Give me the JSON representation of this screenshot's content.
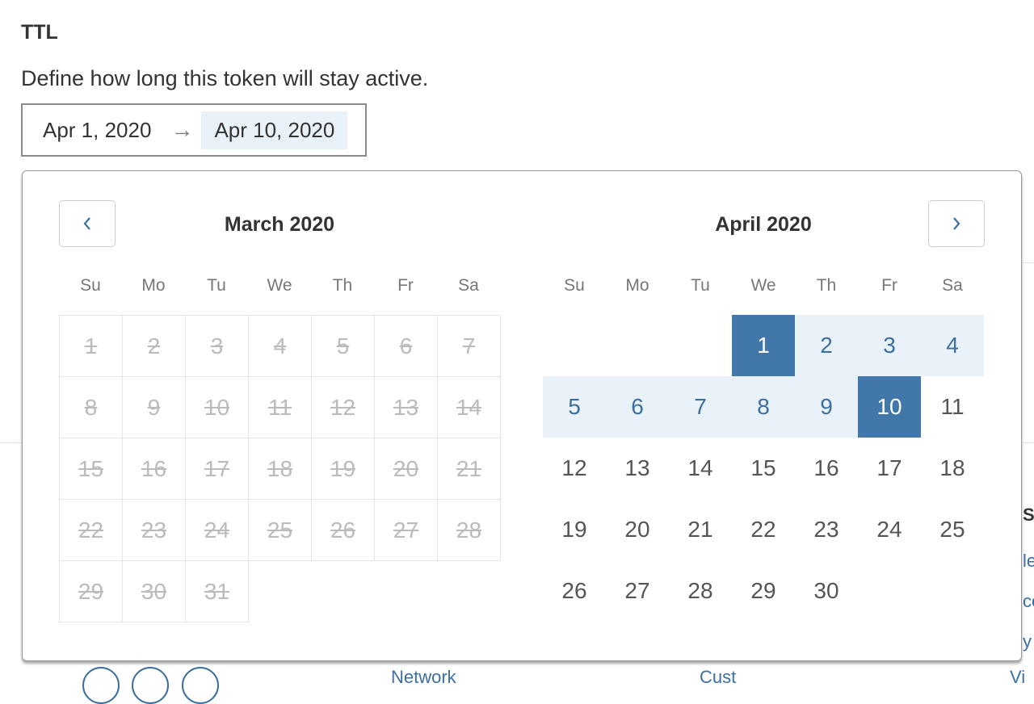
{
  "ttl": {
    "title": "TTL",
    "description": "Define how long this token will stay active.",
    "start_label": "Apr 1, 2020",
    "arrow": "→",
    "end_label": "Apr 10, 2020"
  },
  "calendar": {
    "prev_icon": "chevron-left-icon",
    "next_icon": "chevron-right-icon",
    "weekdays": [
      "Su",
      "Mo",
      "Tu",
      "We",
      "Th",
      "Fr",
      "Sa"
    ],
    "months": [
      {
        "title": "March 2020",
        "first_weekday": 0,
        "days": 31,
        "disabled": true
      },
      {
        "title": "April 2020",
        "first_weekday": 3,
        "days": 30,
        "disabled": false
      }
    ],
    "range": {
      "start": 1,
      "end": 10,
      "month_index": 1
    },
    "colors": {
      "selected": "#4277a9",
      "in_range": "#eaf2f9",
      "accent": "#3b6fa0"
    }
  },
  "background": {
    "right_fragments": [
      "Su",
      "le",
      "co",
      "y"
    ],
    "bottom_fragments": [
      "Network",
      "Cust",
      "Vi"
    ]
  }
}
